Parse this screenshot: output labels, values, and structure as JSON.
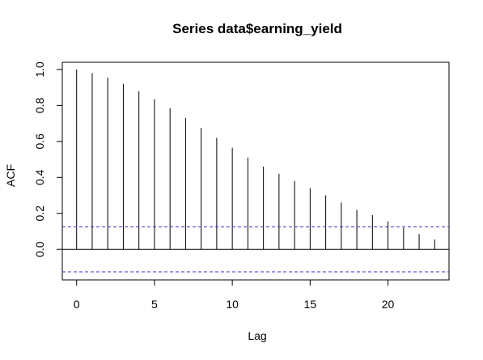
{
  "chart_data": {
    "type": "bar",
    "title": "Series  data$earning_yield",
    "xlabel": "Lag",
    "ylabel": "ACF",
    "x": [
      0,
      1,
      2,
      3,
      4,
      5,
      6,
      7,
      8,
      9,
      10,
      11,
      12,
      13,
      14,
      15,
      16,
      17,
      18,
      19,
      20,
      21,
      22,
      23
    ],
    "values": [
      1.0,
      0.98,
      0.955,
      0.92,
      0.88,
      0.835,
      0.785,
      0.73,
      0.675,
      0.62,
      0.565,
      0.51,
      0.46,
      0.42,
      0.38,
      0.34,
      0.3,
      0.26,
      0.22,
      0.19,
      0.155,
      0.12,
      0.085,
      0.055
    ],
    "xlim": [
      -0.92,
      23.92
    ],
    "ylim": [
      -0.17,
      1.04
    ],
    "x_ticks": [
      0,
      5,
      10,
      15,
      20
    ],
    "y_ticks": [
      0.0,
      0.2,
      0.4,
      0.6,
      0.8,
      1.0
    ],
    "y_tick_labels": [
      "0.0",
      "0.2",
      "0.4",
      "0.6",
      "0.8",
      "1.0"
    ],
    "x_tick_labels": [
      "0",
      "5",
      "10",
      "15",
      "20"
    ],
    "confidence_bound": 0.125,
    "zero_line": 0,
    "colors": {
      "spike": "#000000",
      "ci": "#3333cc",
      "frame": "#000000"
    },
    "grid": false,
    "legend": "none"
  }
}
